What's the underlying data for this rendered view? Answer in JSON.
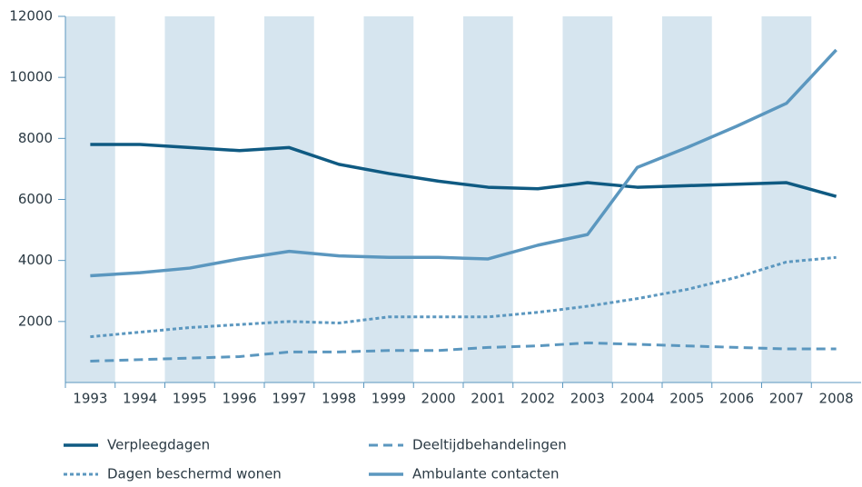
{
  "chart_data": {
    "type": "line",
    "categories": [
      "1993",
      "1994",
      "1995",
      "1996",
      "1997",
      "1998",
      "1999",
      "2000",
      "2001",
      "2002",
      "2003",
      "2004",
      "2005",
      "2006",
      "2007",
      "2008"
    ],
    "series": [
      {
        "name": "Verpleegdagen",
        "color": "#0f5a82",
        "dash": "solid",
        "values": [
          7800,
          7800,
          7700,
          7600,
          7700,
          7150,
          6850,
          6600,
          6400,
          6350,
          6550,
          6400,
          6450,
          6500,
          6550,
          6100
        ]
      },
      {
        "name": "Deeltijdbehandelingen",
        "color": "#5b97bf",
        "dash": "dashed",
        "values": [
          700,
          750,
          800,
          850,
          1000,
          1000,
          1050,
          1050,
          1150,
          1200,
          1300,
          1250,
          1200,
          1150,
          1100,
          1100
        ]
      },
      {
        "name": "Dagen beschermd wonen",
        "color": "#5b97bf",
        "dash": "dotted",
        "values": [
          1500,
          1650,
          1800,
          1900,
          2000,
          1950,
          2150,
          2150,
          2150,
          2300,
          2500,
          2750,
          3050,
          3450,
          3950,
          4100
        ]
      },
      {
        "name": "Ambulante contacten",
        "color": "#5b97bf",
        "dash": "solid",
        "values": [
          3500,
          3600,
          3750,
          4050,
          4300,
          4150,
          4100,
          4100,
          4050,
          4500,
          4850,
          7050,
          7700,
          8400,
          9150,
          10900
        ]
      }
    ],
    "ylim": [
      0,
      12000
    ],
    "yticks": [
      2000,
      4000,
      6000,
      8000,
      10000,
      12000
    ],
    "band_color": "#d6e5ef",
    "legend": "bottom"
  }
}
